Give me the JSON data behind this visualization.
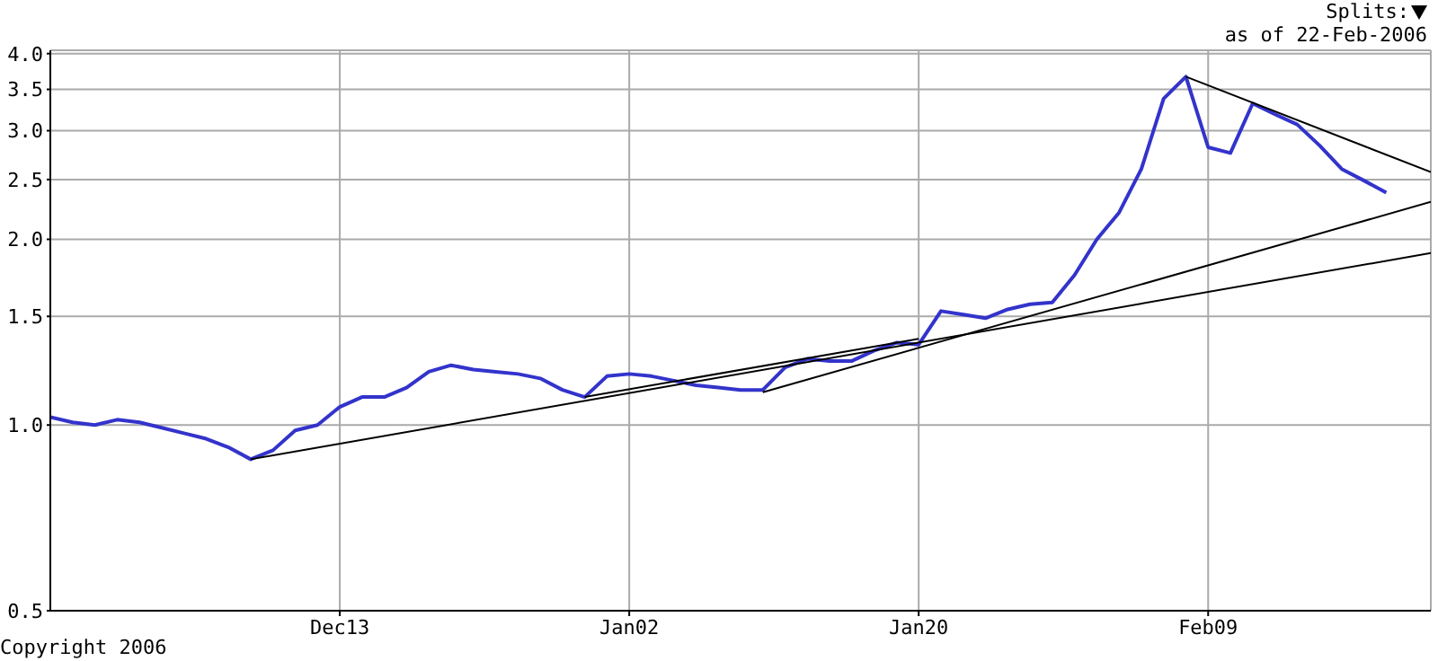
{
  "chart_data": {
    "type": "line",
    "annotations": [
      "Splits:",
      "as of 22-Feb-2006",
      "Copyright 2006"
    ],
    "categories": [
      null,
      null,
      null,
      null,
      null,
      null,
      null,
      null,
      null,
      null,
      null,
      null,
      null,
      "Dec13",
      null,
      null,
      null,
      null,
      null,
      null,
      null,
      null,
      null,
      null,
      null,
      null,
      "Jan02",
      null,
      null,
      null,
      null,
      null,
      null,
      null,
      null,
      null,
      null,
      null,
      null,
      "Jan20",
      null,
      null,
      null,
      null,
      null,
      null,
      null,
      null,
      null,
      null,
      null,
      null,
      "Feb09",
      null,
      null,
      null,
      null,
      null,
      null,
      null,
      null,
      null,
      null
    ],
    "series": [
      {
        "color": "#3333cc",
        "values": [
          1.03,
          1.01,
          1.0,
          1.02,
          1.01,
          0.99,
          0.97,
          0.95,
          0.92,
          0.88,
          0.91,
          0.98,
          1.0,
          1.07,
          1.11,
          1.11,
          1.15,
          1.22,
          1.25,
          1.23,
          1.22,
          1.21,
          1.19,
          1.14,
          1.11,
          1.2,
          1.21,
          1.2,
          1.18,
          1.16,
          1.15,
          1.14,
          1.14,
          1.24,
          1.28,
          1.27,
          1.27,
          1.32,
          1.36,
          1.35,
          1.53,
          1.51,
          1.49,
          1.54,
          1.57,
          1.58,
          1.75,
          2.0,
          2.21,
          2.6,
          3.38,
          3.67,
          2.82,
          2.76,
          3.32,
          3.19,
          3.07,
          2.84,
          2.6,
          2.49,
          2.38,
          null,
          null
        ]
      },
      {
        "type": "line",
        "color": "#000000",
        "values": [
          null,
          null,
          null,
          null,
          null,
          null,
          null,
          null,
          null,
          0.88,
          null,
          null,
          null,
          null,
          null,
          null,
          null,
          null,
          null,
          null,
          null,
          null,
          null,
          null,
          null,
          null,
          null,
          null,
          null,
          null,
          null,
          null,
          null,
          null,
          null,
          null,
          null,
          null,
          null,
          null,
          null,
          null,
          null,
          null,
          null,
          null,
          null,
          null,
          null,
          null,
          null,
          null,
          null,
          null,
          null,
          null,
          null,
          null,
          null,
          null,
          null,
          null,
          1.9
        ]
      },
      {
        "type": "line",
        "color": "#000000",
        "values": [
          null,
          null,
          null,
          null,
          null,
          null,
          null,
          null,
          null,
          null,
          null,
          null,
          null,
          null,
          null,
          null,
          null,
          null,
          null,
          null,
          null,
          null,
          null,
          null,
          1.11,
          null,
          null,
          null,
          null,
          null,
          null,
          null,
          null,
          null,
          null,
          null,
          null,
          null,
          null,
          1.38,
          null,
          null,
          null,
          null,
          null,
          null,
          null,
          null,
          null,
          null,
          null,
          null,
          null,
          null,
          null,
          null,
          null,
          null,
          null,
          null,
          null,
          null,
          null
        ]
      },
      {
        "type": "line",
        "color": "#000000",
        "values": [
          null,
          null,
          null,
          null,
          null,
          null,
          null,
          null,
          null,
          null,
          null,
          null,
          null,
          null,
          null,
          null,
          null,
          null,
          null,
          null,
          null,
          null,
          null,
          null,
          null,
          null,
          null,
          null,
          null,
          null,
          null,
          null,
          1.13,
          null,
          null,
          null,
          null,
          null,
          null,
          null,
          null,
          null,
          null,
          null,
          null,
          null,
          null,
          null,
          null,
          null,
          null,
          null,
          null,
          null,
          null,
          null,
          null,
          null,
          null,
          null,
          null,
          null,
          2.3
        ]
      },
      {
        "type": "line",
        "color": "#000000",
        "values": [
          null,
          null,
          null,
          null,
          null,
          null,
          null,
          null,
          null,
          null,
          null,
          null,
          null,
          null,
          null,
          null,
          null,
          null,
          null,
          null,
          null,
          null,
          null,
          null,
          null,
          null,
          null,
          null,
          null,
          null,
          null,
          null,
          null,
          null,
          null,
          null,
          null,
          null,
          null,
          null,
          null,
          null,
          null,
          null,
          null,
          null,
          null,
          null,
          null,
          null,
          null,
          3.67,
          null,
          null,
          null,
          null,
          null,
          null,
          null,
          null,
          null,
          null,
          2.57
        ]
      }
    ],
    "ylim": [
      0.5,
      4.05
    ],
    "yticks": [
      {
        "value": 0.5,
        "label": "0.5"
      },
      {
        "value": 1,
        "label": "1.0"
      },
      {
        "value": 1.5,
        "label": "1.5"
      },
      {
        "value": 2,
        "label": "2.0"
      },
      {
        "value": 2.5,
        "label": "2.5"
      },
      {
        "value": 3,
        "label": "3.0"
      },
      {
        "value": 3.5,
        "label": "3.5"
      },
      {
        "value": 4,
        "label": "4.0"
      }
    ],
    "log": true,
    "grid": true
  }
}
